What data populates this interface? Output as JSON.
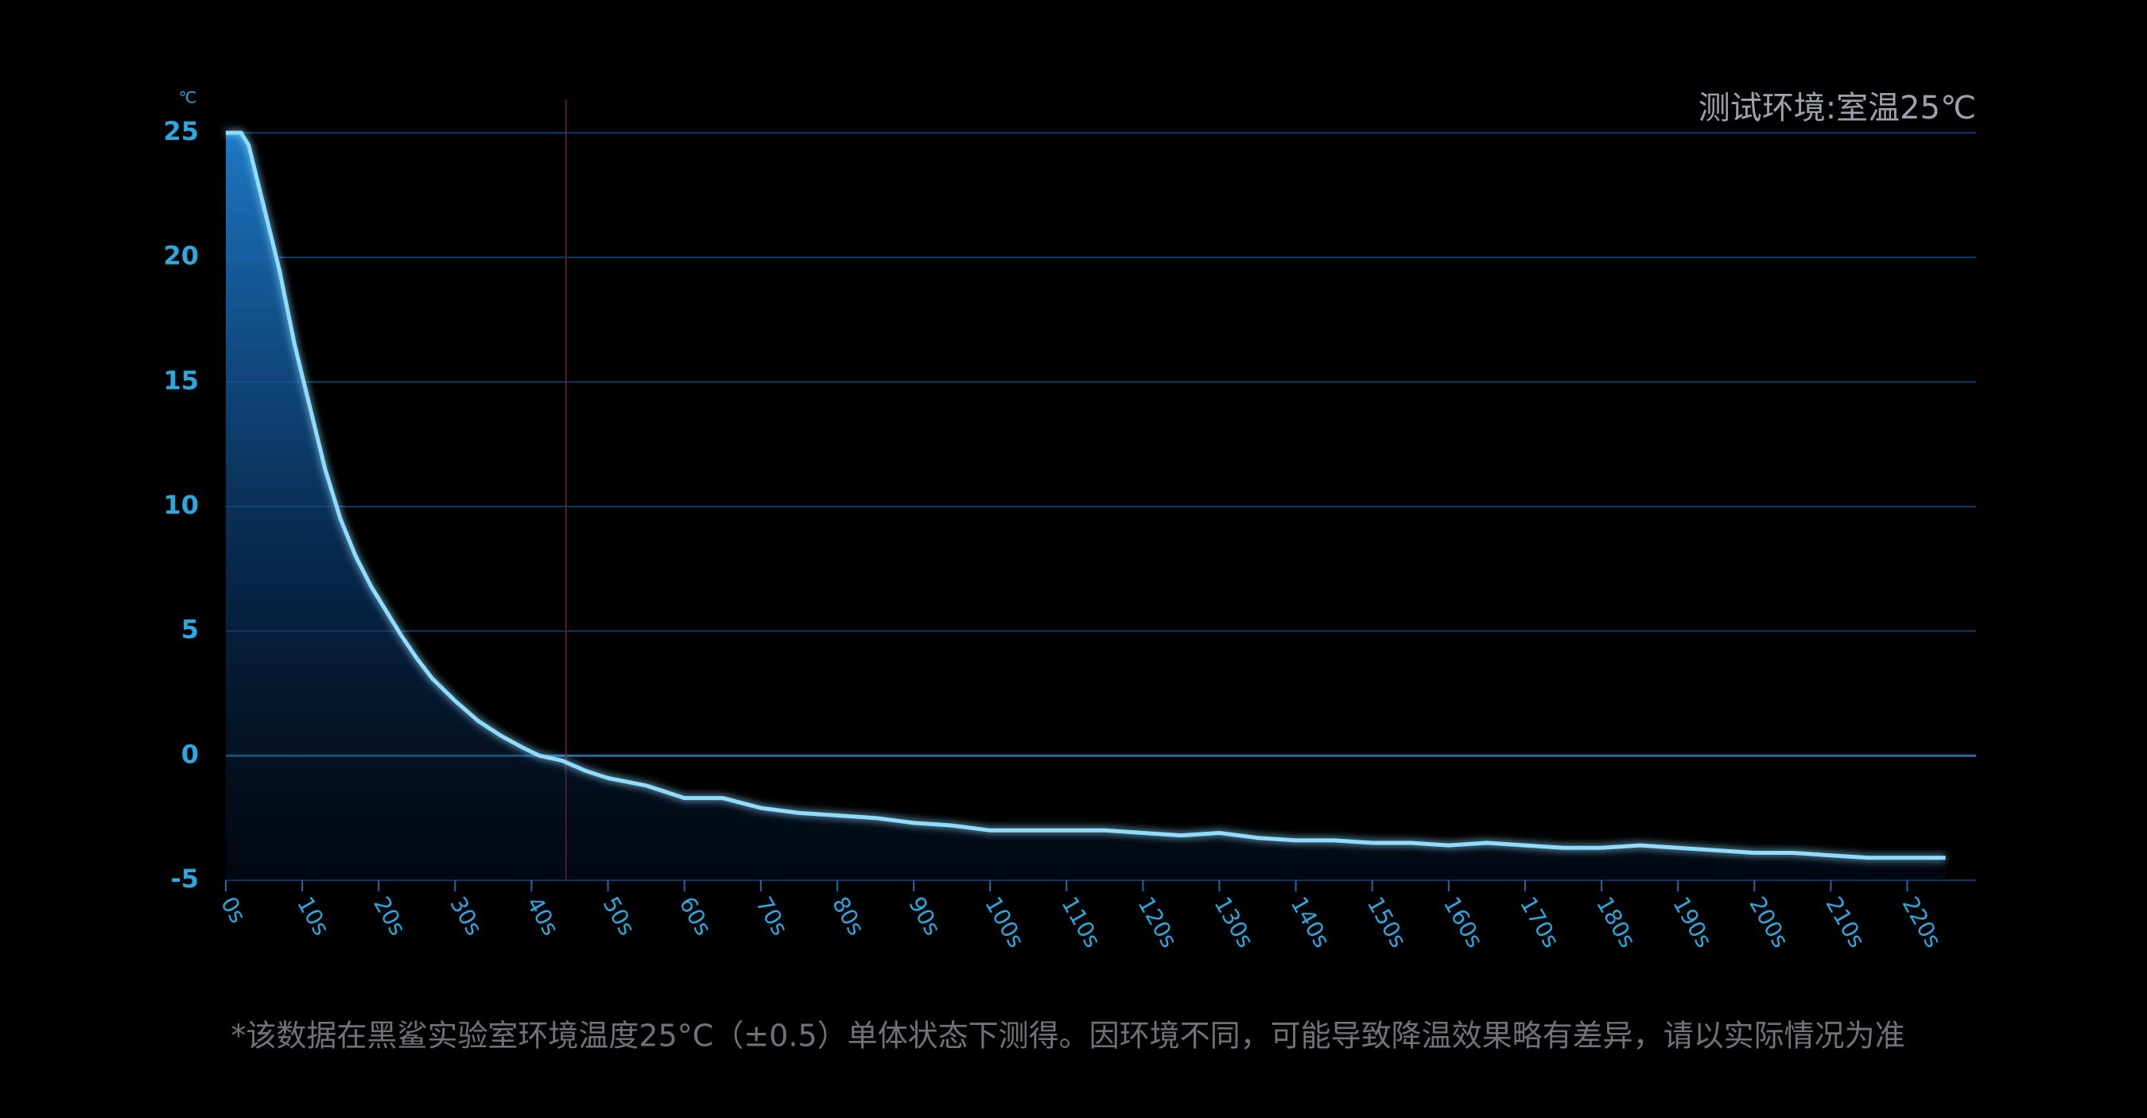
{
  "chart_data": {
    "type": "area-line",
    "annotation": "测试环境:室温25℃",
    "y_unit": "℃",
    "footnote": "*该数据在黑鲨实验室环境温度25°C（±0.5）单体状态下测得。因环境不同，可能导致降温效果略有差异，请以实际情况为准",
    "x": [
      0,
      2,
      3,
      5,
      7,
      9,
      11,
      13,
      15,
      17,
      19,
      21,
      23,
      25,
      27,
      30,
      33,
      36,
      39,
      41,
      44,
      47,
      50,
      55,
      60,
      65,
      70,
      75,
      80,
      85,
      90,
      95,
      100,
      105,
      110,
      115,
      120,
      125,
      130,
      135,
      140,
      145,
      150,
      155,
      160,
      165,
      170,
      175,
      180,
      185,
      190,
      195,
      200,
      205,
      210,
      215,
      220,
      225
    ],
    "values": [
      25,
      25,
      24.5,
      22,
      19.5,
      16.5,
      14,
      11.5,
      9.5,
      8,
      6.8,
      5.8,
      4.8,
      3.9,
      3.1,
      2.2,
      1.4,
      0.8,
      0.3,
      0,
      -0.2,
      -0.6,
      -0.9,
      -1.2,
      -1.7,
      -1.7,
      -2.1,
      -2.3,
      -2.4,
      -2.5,
      -2.7,
      -2.8,
      -3.0,
      -3.0,
      -3.0,
      -3.0,
      -3.1,
      -3.2,
      -3.1,
      -3.3,
      -3.4,
      -3.4,
      -3.5,
      -3.5,
      -3.6,
      -3.5,
      -3.6,
      -3.7,
      -3.7,
      -3.6,
      -3.7,
      -3.8,
      -3.9,
      -3.9,
      -4.0,
      -4.1,
      -4.1,
      -4.1
    ],
    "color": "#8fdcff",
    "xlim": [
      0,
      229
    ],
    "ylim": [
      -5,
      25
    ],
    "xticks": [
      {
        "value": 0,
        "label": "0s"
      },
      {
        "value": 10,
        "label": "10s"
      },
      {
        "value": 20,
        "label": "20s"
      },
      {
        "value": 30,
        "label": "30s"
      },
      {
        "value": 40,
        "label": "40s"
      },
      {
        "value": 50,
        "label": "50s"
      },
      {
        "value": 60,
        "label": "60s"
      },
      {
        "value": 70,
        "label": "70s"
      },
      {
        "value": 80,
        "label": "80s"
      },
      {
        "value": 90,
        "label": "90s"
      },
      {
        "value": 100,
        "label": "100s"
      },
      {
        "value": 110,
        "label": "110s"
      },
      {
        "value": 120,
        "label": "120s"
      },
      {
        "value": 130,
        "label": "130s"
      },
      {
        "value": 140,
        "label": "140s"
      },
      {
        "value": 150,
        "label": "150s"
      },
      {
        "value": 160,
        "label": "160s"
      },
      {
        "value": 170,
        "label": "170s"
      },
      {
        "value": 180,
        "label": "180s"
      },
      {
        "value": 190,
        "label": "190s"
      },
      {
        "value": 200,
        "label": "200s"
      },
      {
        "value": 210,
        "label": "210s"
      },
      {
        "value": 220,
        "label": "220s"
      }
    ],
    "yticks": [
      -5,
      0,
      5,
      10,
      15,
      20,
      25
    ],
    "marker_x": 44.5,
    "grid": true
  }
}
